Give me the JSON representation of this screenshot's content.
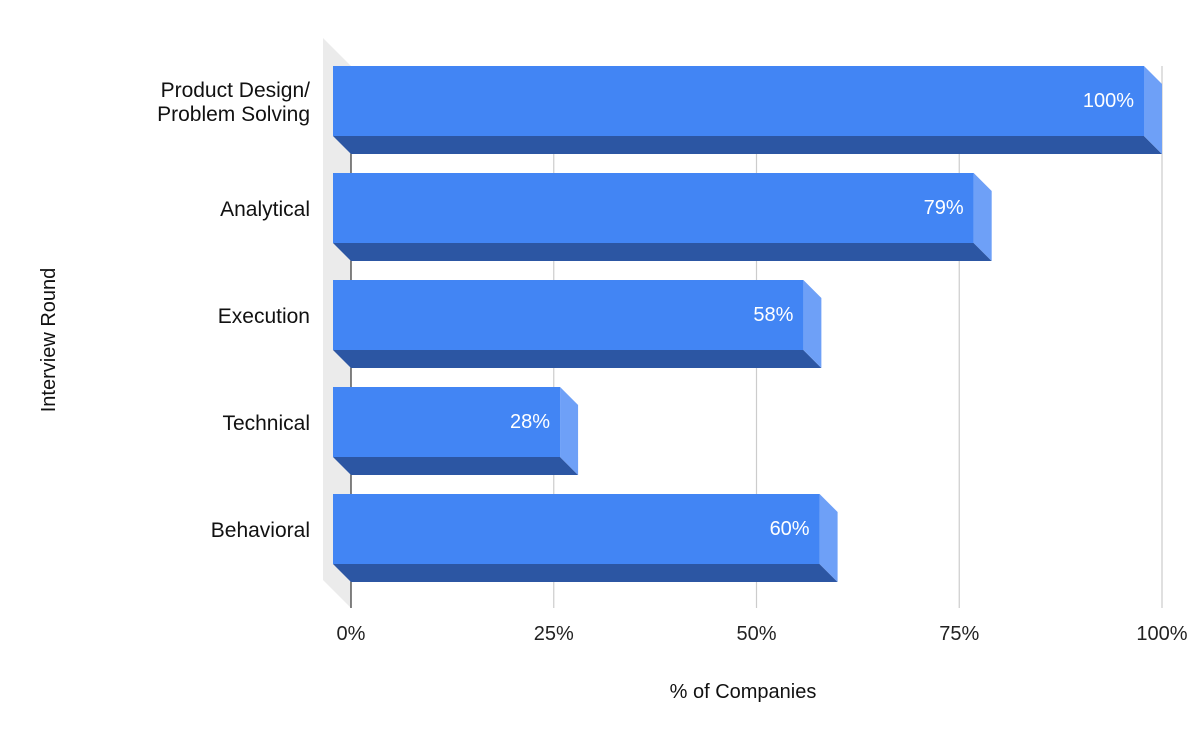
{
  "chart_data": {
    "type": "bar",
    "orientation": "horizontal",
    "style": "3d",
    "categories": [
      [
        "Product Design/",
        "Problem Solving"
      ],
      [
        "Analytical"
      ],
      [
        "Execution"
      ],
      [
        "Technical"
      ],
      [
        "Behavioral"
      ]
    ],
    "values": [
      100,
      79,
      58,
      28,
      60
    ],
    "data_labels": [
      "100%",
      "79%",
      "58%",
      "28%",
      "60%"
    ],
    "title": "",
    "xlabel": "% of Companies",
    "ylabel": "Interview Round",
    "xlim": [
      0,
      100
    ],
    "x_ticks": [
      0,
      25,
      50,
      75,
      100
    ],
    "x_tick_labels": [
      "0%",
      "25%",
      "50%",
      "75%",
      "100%"
    ],
    "grid": true,
    "legend": "none",
    "colors": {
      "bar_front": "#4285f4",
      "bar_bottom": "#2c56a3",
      "bar_side": "#6ea0f7",
      "grid": "#cccccc",
      "back_wall": "#ebebeb"
    }
  }
}
